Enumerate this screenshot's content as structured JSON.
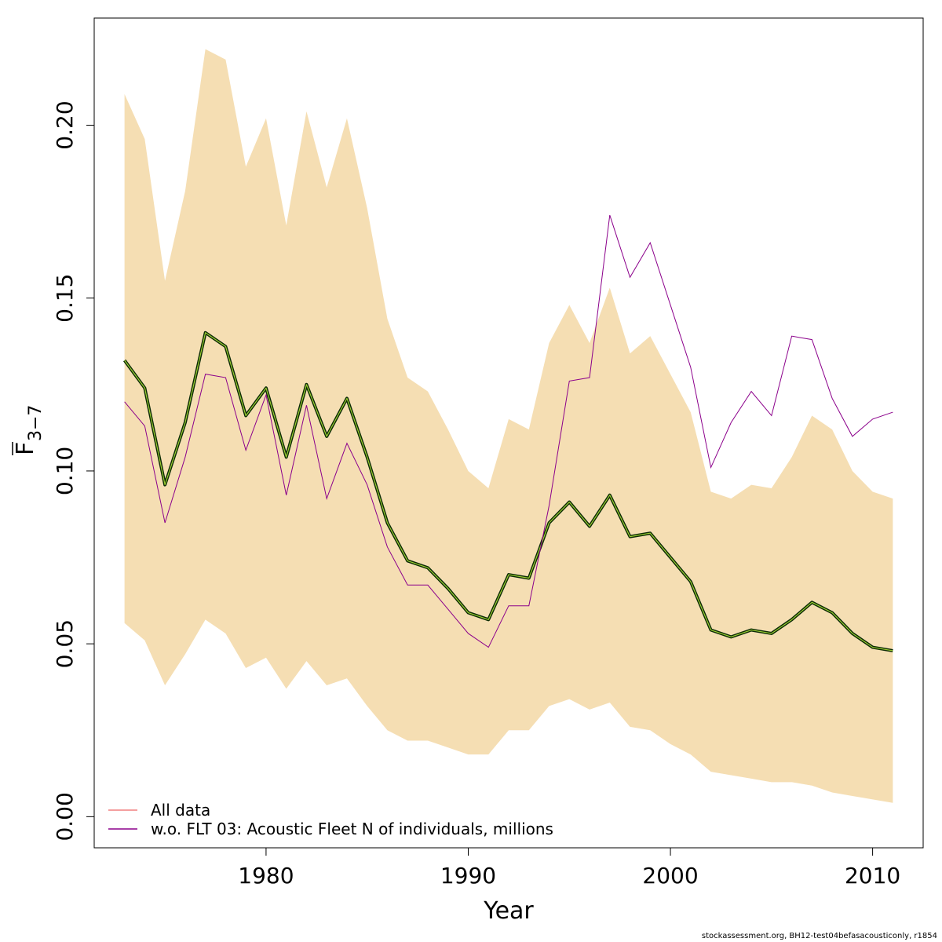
{
  "footer_text": "stockassessment.org, BH12-test04befasacousticonly, r1854",
  "chart_data": {
    "type": "line",
    "xlabel": "Year",
    "ylabel_main": "F",
    "ylabel_sub": "3−7",
    "xlim": [
      1971.5,
      2012.5
    ],
    "ylim": [
      -0.009,
      0.231
    ],
    "xticks": [
      1980,
      1990,
      2000,
      2010
    ],
    "yticks": [
      "0.00",
      "0.05",
      "0.10",
      "0.15",
      "0.20"
    ],
    "ytick_values": [
      0.0,
      0.05,
      0.1,
      0.15,
      0.2
    ],
    "band_color": "#F5DEB3",
    "x": [
      1973,
      1974,
      1975,
      1976,
      1977,
      1978,
      1979,
      1980,
      1981,
      1982,
      1983,
      1984,
      1985,
      1986,
      1987,
      1988,
      1989,
      1990,
      1991,
      1992,
      1993,
      1994,
      1995,
      1996,
      1997,
      1998,
      1999,
      2000,
      2001,
      2002,
      2003,
      2004,
      2005,
      2006,
      2007,
      2008,
      2009,
      2010,
      2011
    ],
    "band_upper": [
      0.209,
      0.196,
      0.155,
      0.181,
      0.222,
      0.219,
      0.188,
      0.202,
      0.171,
      0.204,
      0.182,
      0.202,
      0.176,
      0.144,
      0.127,
      0.123,
      0.112,
      0.1,
      0.095,
      0.115,
      0.112,
      0.137,
      0.148,
      0.137,
      0.153,
      0.134,
      0.139,
      0.128,
      0.117,
      0.094,
      0.092,
      0.096,
      0.095,
      0.104,
      0.116,
      0.112,
      0.1,
      0.094,
      0.092
    ],
    "band_lower": [
      0.056,
      0.051,
      0.038,
      0.047,
      0.057,
      0.053,
      0.043,
      0.046,
      0.037,
      0.045,
      0.038,
      0.04,
      0.032,
      0.025,
      0.022,
      0.022,
      0.02,
      0.018,
      0.018,
      0.025,
      0.025,
      0.032,
      0.034,
      0.031,
      0.033,
      0.026,
      0.025,
      0.021,
      0.018,
      0.013,
      0.012,
      0.011,
      0.01,
      0.01,
      0.009,
      0.007,
      0.006,
      0.005,
      0.004
    ],
    "series": [
      {
        "name": "All data",
        "legend_color": "#F08080",
        "values": [
          0.132,
          0.124,
          0.096,
          0.114,
          0.14,
          0.136,
          0.116,
          0.124,
          0.104,
          0.125,
          0.11,
          0.121,
          0.104,
          0.085,
          0.074,
          0.072,
          0.066,
          0.059,
          0.057,
          0.07,
          0.069,
          0.085,
          0.091,
          0.084,
          0.093,
          0.081,
          0.082,
          0.075,
          0.068,
          0.054,
          0.052,
          0.054,
          0.053,
          0.057,
          0.062,
          0.059,
          0.053,
          0.049,
          0.048
        ]
      },
      {
        "name": "w.o. FLT 03: Acoustic Fleet  N of individuals, millions",
        "legend_color": "#8B008B",
        "values": [
          0.12,
          0.113,
          0.085,
          0.104,
          0.128,
          0.127,
          0.106,
          0.122,
          0.093,
          0.119,
          0.092,
          0.108,
          0.096,
          0.078,
          0.067,
          0.067,
          0.06,
          0.053,
          0.049,
          0.061,
          0.061,
          0.09,
          0.126,
          0.127,
          0.174,
          0.156,
          0.166,
          0.148,
          0.13,
          0.101,
          0.114,
          0.123,
          0.116,
          0.139,
          0.138,
          0.121,
          0.11,
          0.115,
          0.117
        ]
      }
    ]
  }
}
